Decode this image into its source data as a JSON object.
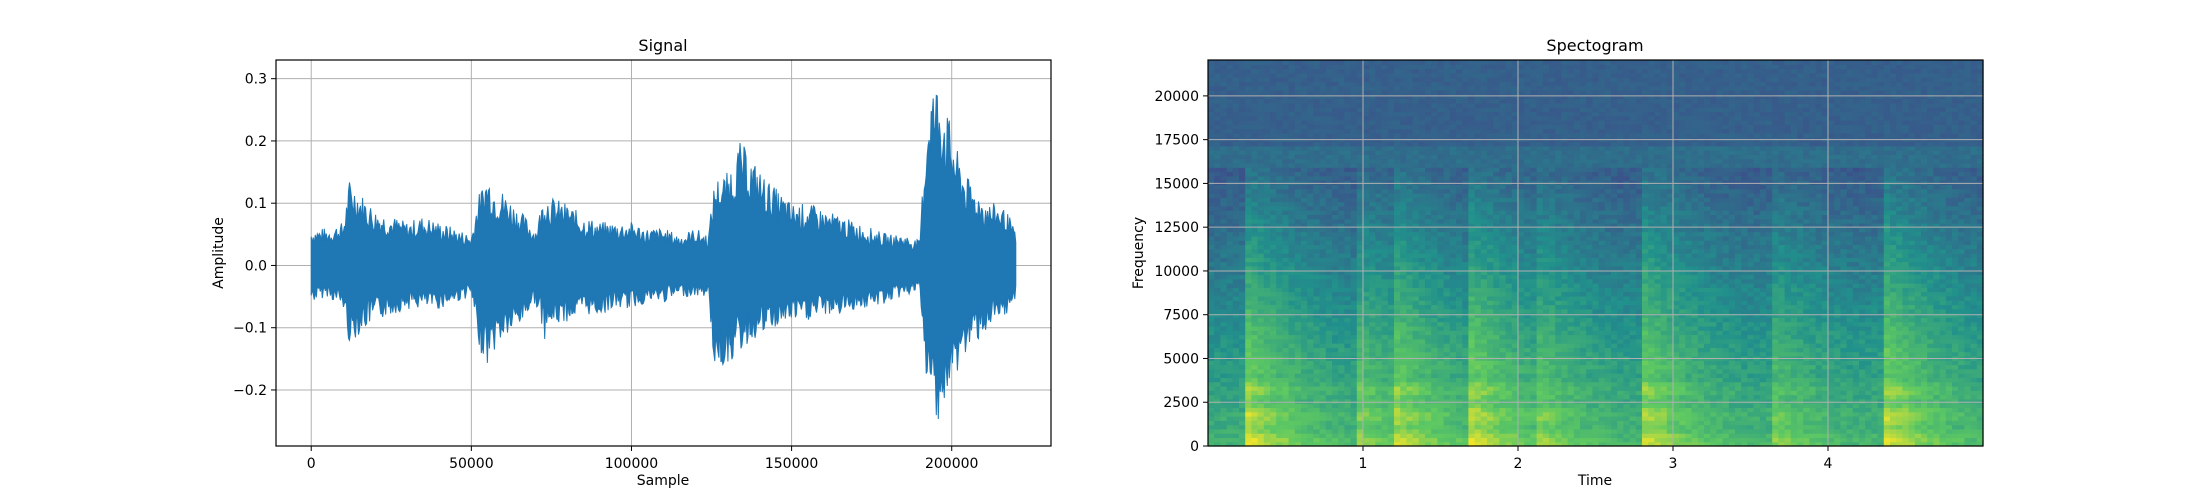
{
  "chart_data": [
    {
      "type": "line",
      "title": "Signal",
      "xlabel": "Sample",
      "ylabel": "Amplitude",
      "xlim": [
        -11000,
        231000
      ],
      "ylim": [
        -0.29,
        0.33
      ],
      "xticks": [
        0,
        50000,
        100000,
        150000,
        200000
      ],
      "xtick_labels": [
        "0",
        "50000",
        "100000",
        "150000",
        "200000"
      ],
      "yticks": [
        -0.2,
        -0.1,
        0.0,
        0.1,
        0.2,
        0.3
      ],
      "ytick_labels": [
        "−0.2",
        "−0.1",
        "0.0",
        "0.1",
        "0.2",
        "0.3"
      ],
      "grid": true,
      "color": "#1f77b4",
      "series": [
        {
          "x": [
            0,
            5000,
            10000,
            12000,
            15000,
            20000,
            25000,
            30000,
            35000,
            40000,
            45000,
            50000,
            52000,
            55000,
            57000,
            60000,
            65000,
            70000,
            73000,
            75000,
            80000,
            85000,
            90000,
            95000,
            100000,
            105000,
            110000,
            115000,
            120000,
            124000,
            126000,
            130000,
            134000,
            138000,
            142000,
            146000,
            150000,
            155000,
            160000,
            165000,
            170000,
            175000,
            180000,
            185000,
            190000,
            191000,
            193000,
            196000,
            199000,
            202000,
            205000,
            208000,
            212000,
            215000,
            218000,
            220000
          ],
          "max": [
            0.06,
            0.06,
            0.07,
            0.14,
            0.12,
            0.09,
            0.08,
            0.07,
            0.08,
            0.07,
            0.06,
            0.05,
            0.11,
            0.15,
            0.13,
            0.12,
            0.09,
            0.06,
            0.12,
            0.11,
            0.1,
            0.08,
            0.07,
            0.07,
            0.07,
            0.06,
            0.06,
            0.05,
            0.06,
            0.05,
            0.14,
            0.15,
            0.2,
            0.17,
            0.14,
            0.12,
            0.1,
            0.1,
            0.09,
            0.08,
            0.07,
            0.06,
            0.05,
            0.05,
            0.04,
            0.14,
            0.29,
            0.3,
            0.24,
            0.18,
            0.14,
            0.12,
            0.1,
            0.1,
            0.08,
            0.05
          ],
          "min": [
            -0.06,
            -0.05,
            -0.07,
            -0.13,
            -0.11,
            -0.09,
            -0.08,
            -0.07,
            -0.07,
            -0.07,
            -0.06,
            -0.05,
            -0.13,
            -0.16,
            -0.14,
            -0.12,
            -0.1,
            -0.06,
            -0.12,
            -0.1,
            -0.09,
            -0.08,
            -0.08,
            -0.07,
            -0.07,
            -0.06,
            -0.06,
            -0.05,
            -0.05,
            -0.05,
            -0.17,
            -0.16,
            -0.14,
            -0.12,
            -0.11,
            -0.1,
            -0.09,
            -0.09,
            -0.08,
            -0.08,
            -0.07,
            -0.07,
            -0.06,
            -0.05,
            -0.04,
            -0.14,
            -0.22,
            -0.25,
            -0.22,
            -0.17,
            -0.14,
            -0.12,
            -0.1,
            -0.1,
            -0.08,
            -0.05
          ]
        }
      ]
    },
    {
      "type": "heatmap",
      "title": "Spectogram",
      "xlabel": "Time",
      "ylabel": "Frequency",
      "xlim": [
        0,
        5
      ],
      "ylim": [
        0,
        22050
      ],
      "xticks": [
        1,
        2,
        3,
        4
      ],
      "xtick_labels": [
        "1",
        "2",
        "3",
        "4"
      ],
      "yticks": [
        0,
        2500,
        5000,
        7500,
        10000,
        12500,
        15000,
        17500,
        20000
      ],
      "ytick_labels": [
        "0",
        "2500",
        "5000",
        "7500",
        "10000",
        "12500",
        "15000",
        "17500",
        "20000"
      ],
      "grid": true,
      "colormap": "viridis",
      "onsets": [
        0.23,
        0.95,
        1.2,
        1.67,
        2.12,
        2.8,
        3.65,
        4.35
      ],
      "onset_strength": [
        1.0,
        0.7,
        0.9,
        1.0,
        0.7,
        0.9,
        0.6,
        1.0
      ],
      "cutoff_frequency": 16000
    }
  ]
}
